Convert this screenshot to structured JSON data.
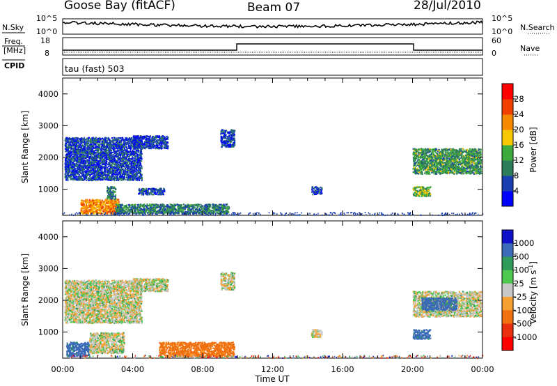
{
  "header": {
    "station": "Goose Bay (fitACF)",
    "beam": "Beam 07",
    "date": "28/Jul/2010"
  },
  "top_panel": {
    "left_label_1": "N.Sky",
    "left_label_2": "Freq.",
    "left_label_3": "[MHz]",
    "left_label_4": "CPID",
    "right_label_1": "N.Search",
    "right_label_2": "Nave",
    "noise_ticks": [
      "10^5",
      "10^0"
    ],
    "noise_ticks_right": [
      "10^5",
      "10^0"
    ],
    "freq_ticks": [
      "18",
      "8"
    ],
    "nave_ticks": [
      "60",
      "0"
    ],
    "cpid_text": "tau (fast) 503"
  },
  "colors": {
    "power_scale": [
      "#0000ff",
      "#1a3fb0",
      "#2e7d5a",
      "#3caa3c",
      "#f5c800",
      "#f58a00",
      "#f04000",
      "#ff0000"
    ],
    "velocity_scale": [
      "#1010c8",
      "#3a6ab8",
      "#2f9a5a",
      "#4fc84f",
      "#c8c8c8",
      "#f5a030",
      "#f07010",
      "#e83010",
      "#ff0000"
    ]
  },
  "chart_data": [
    {
      "type": "heatmap",
      "title": "",
      "xlabel": "",
      "ylabel": "Slant Range [km]",
      "x_ticks": [
        "00:00",
        "04:00",
        "08:00",
        "12:00",
        "16:00",
        "20:00",
        "00:00"
      ],
      "y_ticks": [
        "1000",
        "2000",
        "3000",
        "4000"
      ],
      "xlim_hours": [
        0,
        24
      ],
      "ylim_km": [
        180,
        4500
      ],
      "colorbar": {
        "label": "Power [dB]",
        "ticks": [
          "4",
          "8",
          "12",
          "16",
          "20",
          "24",
          "28"
        ]
      },
      "echo_regions": [
        {
          "start_h": 0.1,
          "end_h": 4.5,
          "range_start_km": 1300,
          "range_end_km": 2650,
          "value": 6
        },
        {
          "start_h": 4.0,
          "end_h": 6.0,
          "range_start_km": 2300,
          "range_end_km": 2700,
          "value": 5
        },
        {
          "start_h": 9.0,
          "end_h": 9.8,
          "range_start_km": 2350,
          "range_end_km": 2900,
          "value": 6
        },
        {
          "start_h": 1.0,
          "end_h": 3.2,
          "range_start_km": 250,
          "range_end_km": 700,
          "value": 22
        },
        {
          "start_h": 2.5,
          "end_h": 3.0,
          "range_start_km": 700,
          "range_end_km": 1100,
          "value": 10
        },
        {
          "start_h": 3.0,
          "end_h": 9.5,
          "range_start_km": 250,
          "range_end_km": 550,
          "value": 10
        },
        {
          "start_h": 4.3,
          "end_h": 5.8,
          "range_start_km": 850,
          "range_end_km": 1050,
          "value": 6
        },
        {
          "start_h": 14.2,
          "end_h": 14.8,
          "range_start_km": 850,
          "range_end_km": 1100,
          "value": 6
        },
        {
          "start_h": 20.0,
          "end_h": 23.9,
          "range_start_km": 1500,
          "range_end_km": 2300,
          "value": 12
        },
        {
          "start_h": 20.0,
          "end_h": 21.0,
          "range_start_km": 800,
          "range_end_km": 1100,
          "value": 14
        }
      ]
    },
    {
      "type": "heatmap",
      "title": "",
      "xlabel": "Time UT",
      "ylabel": "Slant Range [km]",
      "x_ticks": [
        "00:00",
        "04:00",
        "08:00",
        "12:00",
        "16:00",
        "20:00",
        "00:00"
      ],
      "y_ticks": [
        "1000",
        "2000",
        "3000",
        "4000"
      ],
      "xlim_hours": [
        0,
        24
      ],
      "ylim_km": [
        180,
        4500
      ],
      "colorbar": {
        "label": "Velocity [m s^-1]",
        "ticks": [
          "1000",
          "500",
          "100",
          "25",
          "-25",
          "-100",
          "-500",
          "-1000"
        ]
      },
      "echo_regions": [
        {
          "start_h": 0.1,
          "end_h": 4.5,
          "range_start_km": 1300,
          "range_end_km": 2650,
          "value": 0
        },
        {
          "start_h": 4.0,
          "end_h": 6.0,
          "range_start_km": 2300,
          "range_end_km": 2700,
          "value": 0
        },
        {
          "start_h": 9.0,
          "end_h": 9.8,
          "range_start_km": 2350,
          "range_end_km": 2900,
          "value": 0
        },
        {
          "start_h": 0.2,
          "end_h": 1.5,
          "range_start_km": 250,
          "range_end_km": 700,
          "value": 150
        },
        {
          "start_h": 1.5,
          "end_h": 3.5,
          "range_start_km": 350,
          "range_end_km": 1000,
          "value": 0
        },
        {
          "start_h": 5.5,
          "end_h": 9.8,
          "range_start_km": 250,
          "range_end_km": 700,
          "value": -150
        },
        {
          "start_h": 14.2,
          "end_h": 14.8,
          "range_start_km": 850,
          "range_end_km": 1100,
          "value": 0
        },
        {
          "start_h": 20.0,
          "end_h": 23.9,
          "range_start_km": 1500,
          "range_end_km": 2300,
          "value": 0
        },
        {
          "start_h": 20.5,
          "end_h": 22.5,
          "range_start_km": 1700,
          "range_end_km": 2100,
          "value": 150
        },
        {
          "start_h": 20.0,
          "end_h": 21.0,
          "range_start_km": 800,
          "range_end_km": 1100,
          "value": 150
        }
      ]
    }
  ]
}
